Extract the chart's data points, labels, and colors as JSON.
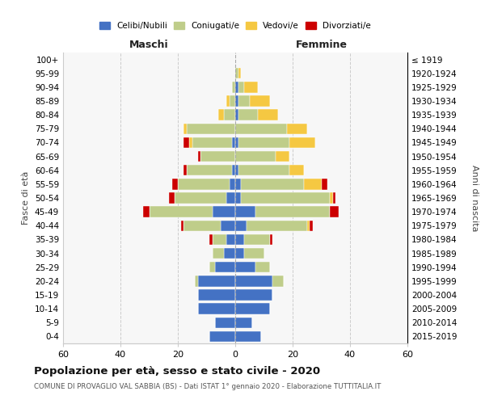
{
  "age_groups": [
    "0-4",
    "5-9",
    "10-14",
    "15-19",
    "20-24",
    "25-29",
    "30-34",
    "35-39",
    "40-44",
    "45-49",
    "50-54",
    "55-59",
    "60-64",
    "65-69",
    "70-74",
    "75-79",
    "80-84",
    "85-89",
    "90-94",
    "95-99",
    "100+"
  ],
  "birth_years": [
    "2015-2019",
    "2010-2014",
    "2005-2009",
    "2000-2004",
    "1995-1999",
    "1990-1994",
    "1985-1989",
    "1980-1984",
    "1975-1979",
    "1970-1974",
    "1965-1969",
    "1960-1964",
    "1955-1959",
    "1950-1954",
    "1945-1949",
    "1940-1944",
    "1935-1939",
    "1930-1934",
    "1925-1929",
    "1920-1924",
    "≤ 1919"
  ],
  "male": {
    "celibi": [
      9,
      7,
      13,
      13,
      13,
      7,
      4,
      3,
      5,
      8,
      3,
      2,
      1,
      0,
      1,
      0,
      0,
      0,
      0,
      0,
      0
    ],
    "coniugati": [
      0,
      0,
      0,
      0,
      1,
      2,
      4,
      5,
      13,
      22,
      18,
      18,
      16,
      12,
      14,
      17,
      4,
      2,
      1,
      0,
      0
    ],
    "vedovi": [
      0,
      0,
      0,
      0,
      0,
      0,
      0,
      0,
      0,
      0,
      0,
      0,
      0,
      0,
      1,
      1,
      2,
      1,
      0,
      0,
      0
    ],
    "divorziati": [
      0,
      0,
      0,
      0,
      0,
      0,
      0,
      1,
      1,
      2,
      2,
      2,
      1,
      1,
      2,
      0,
      0,
      0,
      0,
      0,
      0
    ]
  },
  "female": {
    "nubili": [
      9,
      6,
      12,
      13,
      13,
      7,
      3,
      3,
      4,
      7,
      2,
      2,
      1,
      0,
      1,
      0,
      1,
      1,
      1,
      0,
      0
    ],
    "coniugate": [
      0,
      0,
      0,
      0,
      4,
      5,
      7,
      9,
      21,
      26,
      31,
      22,
      18,
      14,
      18,
      18,
      7,
      4,
      2,
      1,
      0
    ],
    "vedove": [
      0,
      0,
      0,
      0,
      0,
      0,
      0,
      0,
      1,
      0,
      1,
      6,
      5,
      5,
      9,
      7,
      7,
      7,
      5,
      1,
      0
    ],
    "divorziate": [
      0,
      0,
      0,
      0,
      0,
      0,
      0,
      1,
      1,
      3,
      1,
      2,
      0,
      0,
      0,
      0,
      0,
      0,
      0,
      0,
      0
    ]
  },
  "colors": {
    "celibi": "#4472C4",
    "coniugati": "#BFCD8A",
    "vedovi": "#F5C842",
    "divorziati": "#CC0000"
  },
  "xlim": 60,
  "title": "Popolazione per età, sesso e stato civile - 2020",
  "subtitle": "COMUNE DI PROVAGLIO VAL SABBIA (BS) - Dati ISTAT 1° gennaio 2020 - Elaborazione TUTTITALIA.IT",
  "ylabel_left": "Fasce di età",
  "ylabel_right": "Anni di nascita",
  "xlabel_male": "Maschi",
  "xlabel_female": "Femmine",
  "background_color": "#ffffff",
  "plot_bg_color": "#f7f7f7",
  "grid_color": "#cccccc"
}
